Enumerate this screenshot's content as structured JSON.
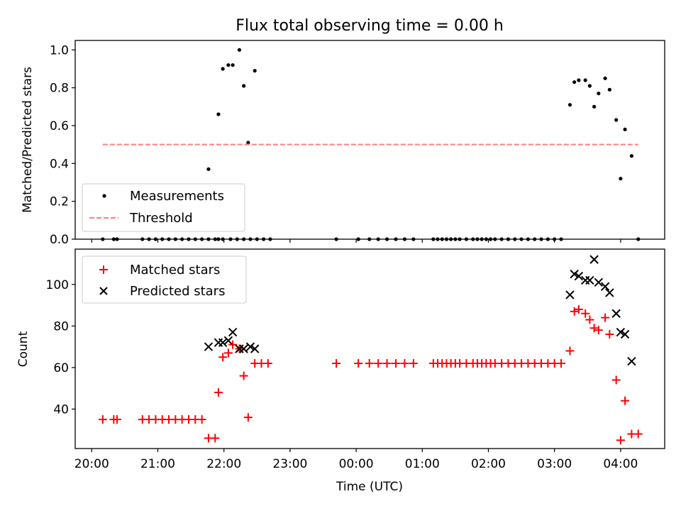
{
  "figure": {
    "title": "Flux total observing time = 0.00 h"
  },
  "chart_data": [
    {
      "type": "scatter",
      "ylabel": "Matched/Predicted stars",
      "xlabel": "",
      "ylim": [
        0.0,
        1.05
      ],
      "yticks": [
        "0.0",
        "0.2",
        "0.4",
        "0.6",
        "0.8",
        "1.0"
      ],
      "xlim": [
        "19:45",
        "04:40"
      ],
      "legend_position": "lower-left",
      "series": [
        {
          "name": "Measurements",
          "kind": "points",
          "color": "#000000",
          "points": [
            [
              "20:10",
              0
            ],
            [
              "20:20",
              0
            ],
            [
              "20:23",
              0
            ],
            [
              "20:46",
              0
            ],
            [
              "20:52",
              0
            ],
            [
              "20:58",
              0
            ],
            [
              "21:04",
              0
            ],
            [
              "21:10",
              0
            ],
            [
              "21:16",
              0
            ],
            [
              "21:22",
              0
            ],
            [
              "21:28",
              0
            ],
            [
              "21:34",
              0
            ],
            [
              "21:40",
              0
            ],
            [
              "21:46",
              0
            ],
            [
              "21:52",
              0
            ],
            [
              "21:55",
              0
            ],
            [
              "21:59",
              0
            ],
            [
              "22:06",
              0
            ],
            [
              "22:12",
              0
            ],
            [
              "22:18",
              0
            ],
            [
              "22:24",
              0
            ],
            [
              "22:30",
              0
            ],
            [
              "22:36",
              0
            ],
            [
              "22:42",
              0
            ],
            [
              "23:42",
              0
            ],
            [
              "00:02",
              0
            ],
            [
              "00:12",
              0
            ],
            [
              "00:20",
              0
            ],
            [
              "00:28",
              0
            ],
            [
              "00:36",
              0
            ],
            [
              "00:44",
              0
            ],
            [
              "00:52",
              0
            ],
            [
              "01:10",
              0
            ],
            [
              "01:14",
              0
            ],
            [
              "01:18",
              0
            ],
            [
              "01:22",
              0
            ],
            [
              "01:26",
              0
            ],
            [
              "01:30",
              0
            ],
            [
              "01:34",
              0
            ],
            [
              "01:40",
              0
            ],
            [
              "01:46",
              0
            ],
            [
              "01:50",
              0
            ],
            [
              "01:54",
              0
            ],
            [
              "01:58",
              0
            ],
            [
              "02:02",
              0
            ],
            [
              "02:06",
              0
            ],
            [
              "02:12",
              0
            ],
            [
              "02:18",
              0
            ],
            [
              "02:24",
              0
            ],
            [
              "02:30",
              0
            ],
            [
              "02:36",
              0
            ],
            [
              "02:42",
              0
            ],
            [
              "02:48",
              0
            ],
            [
              "02:54",
              0
            ],
            [
              "03:00",
              0
            ],
            [
              "03:06",
              0
            ],
            [
              "04:16",
              0
            ],
            [
              "21:46",
              0.37
            ],
            [
              "21:55",
              0.66
            ],
            [
              "21:59",
              0.9
            ],
            [
              "22:04",
              0.92
            ],
            [
              "22:08",
              0.92
            ],
            [
              "22:14",
              1.0
            ],
            [
              "22:18",
              0.81
            ],
            [
              "22:22",
              0.51
            ],
            [
              "22:28",
              0.89
            ],
            [
              "03:14",
              0.71
            ],
            [
              "03:18",
              0.83
            ],
            [
              "03:22",
              0.84
            ],
            [
              "03:28",
              0.84
            ],
            [
              "03:32",
              0.81
            ],
            [
              "03:36",
              0.7
            ],
            [
              "03:40",
              0.77
            ],
            [
              "03:46",
              0.85
            ],
            [
              "03:50",
              0.79
            ],
            [
              "03:56",
              0.63
            ],
            [
              "04:00",
              0.32
            ],
            [
              "04:04",
              0.58
            ],
            [
              "04:10",
              0.44
            ]
          ]
        },
        {
          "name": "Threshold",
          "kind": "dashed-line",
          "color": "#ff7f7f",
          "points": [
            [
              "20:10",
              0.5
            ],
            [
              "04:16",
              0.5
            ]
          ]
        }
      ]
    },
    {
      "type": "scatter",
      "ylabel": "Count",
      "xlabel": "Time (UTC)",
      "ylim": [
        21,
        117
      ],
      "yticks": [
        "40",
        "60",
        "80",
        "100"
      ],
      "xlim": [
        "19:45",
        "04:40"
      ],
      "xticks": [
        "20:00",
        "21:00",
        "22:00",
        "23:00",
        "00:00",
        "01:00",
        "02:00",
        "03:00",
        "04:00"
      ],
      "legend_position": "upper-left",
      "series": [
        {
          "name": "Matched stars",
          "marker": "plus",
          "color": "#ff0000",
          "points": [
            [
              "20:10",
              35
            ],
            [
              "20:20",
              35
            ],
            [
              "20:23",
              35
            ],
            [
              "20:46",
              35
            ],
            [
              "20:52",
              35
            ],
            [
              "20:58",
              35
            ],
            [
              "21:04",
              35
            ],
            [
              "21:10",
              35
            ],
            [
              "21:16",
              35
            ],
            [
              "21:22",
              35
            ],
            [
              "21:28",
              35
            ],
            [
              "21:34",
              35
            ],
            [
              "21:40",
              35
            ],
            [
              "21:46",
              26
            ],
            [
              "21:52",
              26
            ],
            [
              "21:55",
              48
            ],
            [
              "21:59",
              65
            ],
            [
              "22:04",
              67
            ],
            [
              "22:08",
              71
            ],
            [
              "22:14",
              69
            ],
            [
              "22:18",
              56
            ],
            [
              "22:22",
              36
            ],
            [
              "22:28",
              62
            ],
            [
              "22:34",
              62
            ],
            [
              "22:40",
              62
            ],
            [
              "23:42",
              62
            ],
            [
              "00:02",
              62
            ],
            [
              "00:12",
              62
            ],
            [
              "00:20",
              62
            ],
            [
              "00:28",
              62
            ],
            [
              "00:36",
              62
            ],
            [
              "00:44",
              62
            ],
            [
              "00:52",
              62
            ],
            [
              "01:10",
              62
            ],
            [
              "01:14",
              62
            ],
            [
              "01:18",
              62
            ],
            [
              "01:22",
              62
            ],
            [
              "01:26",
              62
            ],
            [
              "01:30",
              62
            ],
            [
              "01:34",
              62
            ],
            [
              "01:40",
              62
            ],
            [
              "01:46",
              62
            ],
            [
              "01:50",
              62
            ],
            [
              "01:54",
              62
            ],
            [
              "01:58",
              62
            ],
            [
              "02:02",
              62
            ],
            [
              "02:06",
              62
            ],
            [
              "02:12",
              62
            ],
            [
              "02:18",
              62
            ],
            [
              "02:24",
              62
            ],
            [
              "02:30",
              62
            ],
            [
              "02:36",
              62
            ],
            [
              "02:42",
              62
            ],
            [
              "02:48",
              62
            ],
            [
              "02:54",
              62
            ],
            [
              "03:00",
              62
            ],
            [
              "03:06",
              62
            ],
            [
              "03:14",
              68
            ],
            [
              "03:18",
              87
            ],
            [
              "03:22",
              88
            ],
            [
              "03:28",
              86
            ],
            [
              "03:32",
              83
            ],
            [
              "03:36",
              79
            ],
            [
              "03:40",
              78
            ],
            [
              "03:46",
              84
            ],
            [
              "03:50",
              76
            ],
            [
              "03:56",
              54
            ],
            [
              "04:00",
              25
            ],
            [
              "04:04",
              44
            ],
            [
              "04:10",
              28
            ],
            [
              "04:16",
              28
            ]
          ]
        },
        {
          "name": "Predicted stars",
          "marker": "x",
          "color": "#000000",
          "points": [
            [
              "21:46",
              70
            ],
            [
              "21:55",
              72
            ],
            [
              "21:59",
              72
            ],
            [
              "22:04",
              73
            ],
            [
              "22:08",
              77
            ],
            [
              "22:14",
              69
            ],
            [
              "22:18",
              69
            ],
            [
              "22:24",
              70
            ],
            [
              "22:28",
              69
            ],
            [
              "03:14",
              95
            ],
            [
              "03:18",
              105
            ],
            [
              "03:22",
              104
            ],
            [
              "03:28",
              102
            ],
            [
              "03:32",
              102
            ],
            [
              "03:36",
              112
            ],
            [
              "03:40",
              101
            ],
            [
              "03:46",
              99
            ],
            [
              "03:50",
              96
            ],
            [
              "03:56",
              86
            ],
            [
              "04:00",
              77
            ],
            [
              "04:04",
              76
            ],
            [
              "04:10",
              63
            ]
          ]
        }
      ]
    }
  ]
}
